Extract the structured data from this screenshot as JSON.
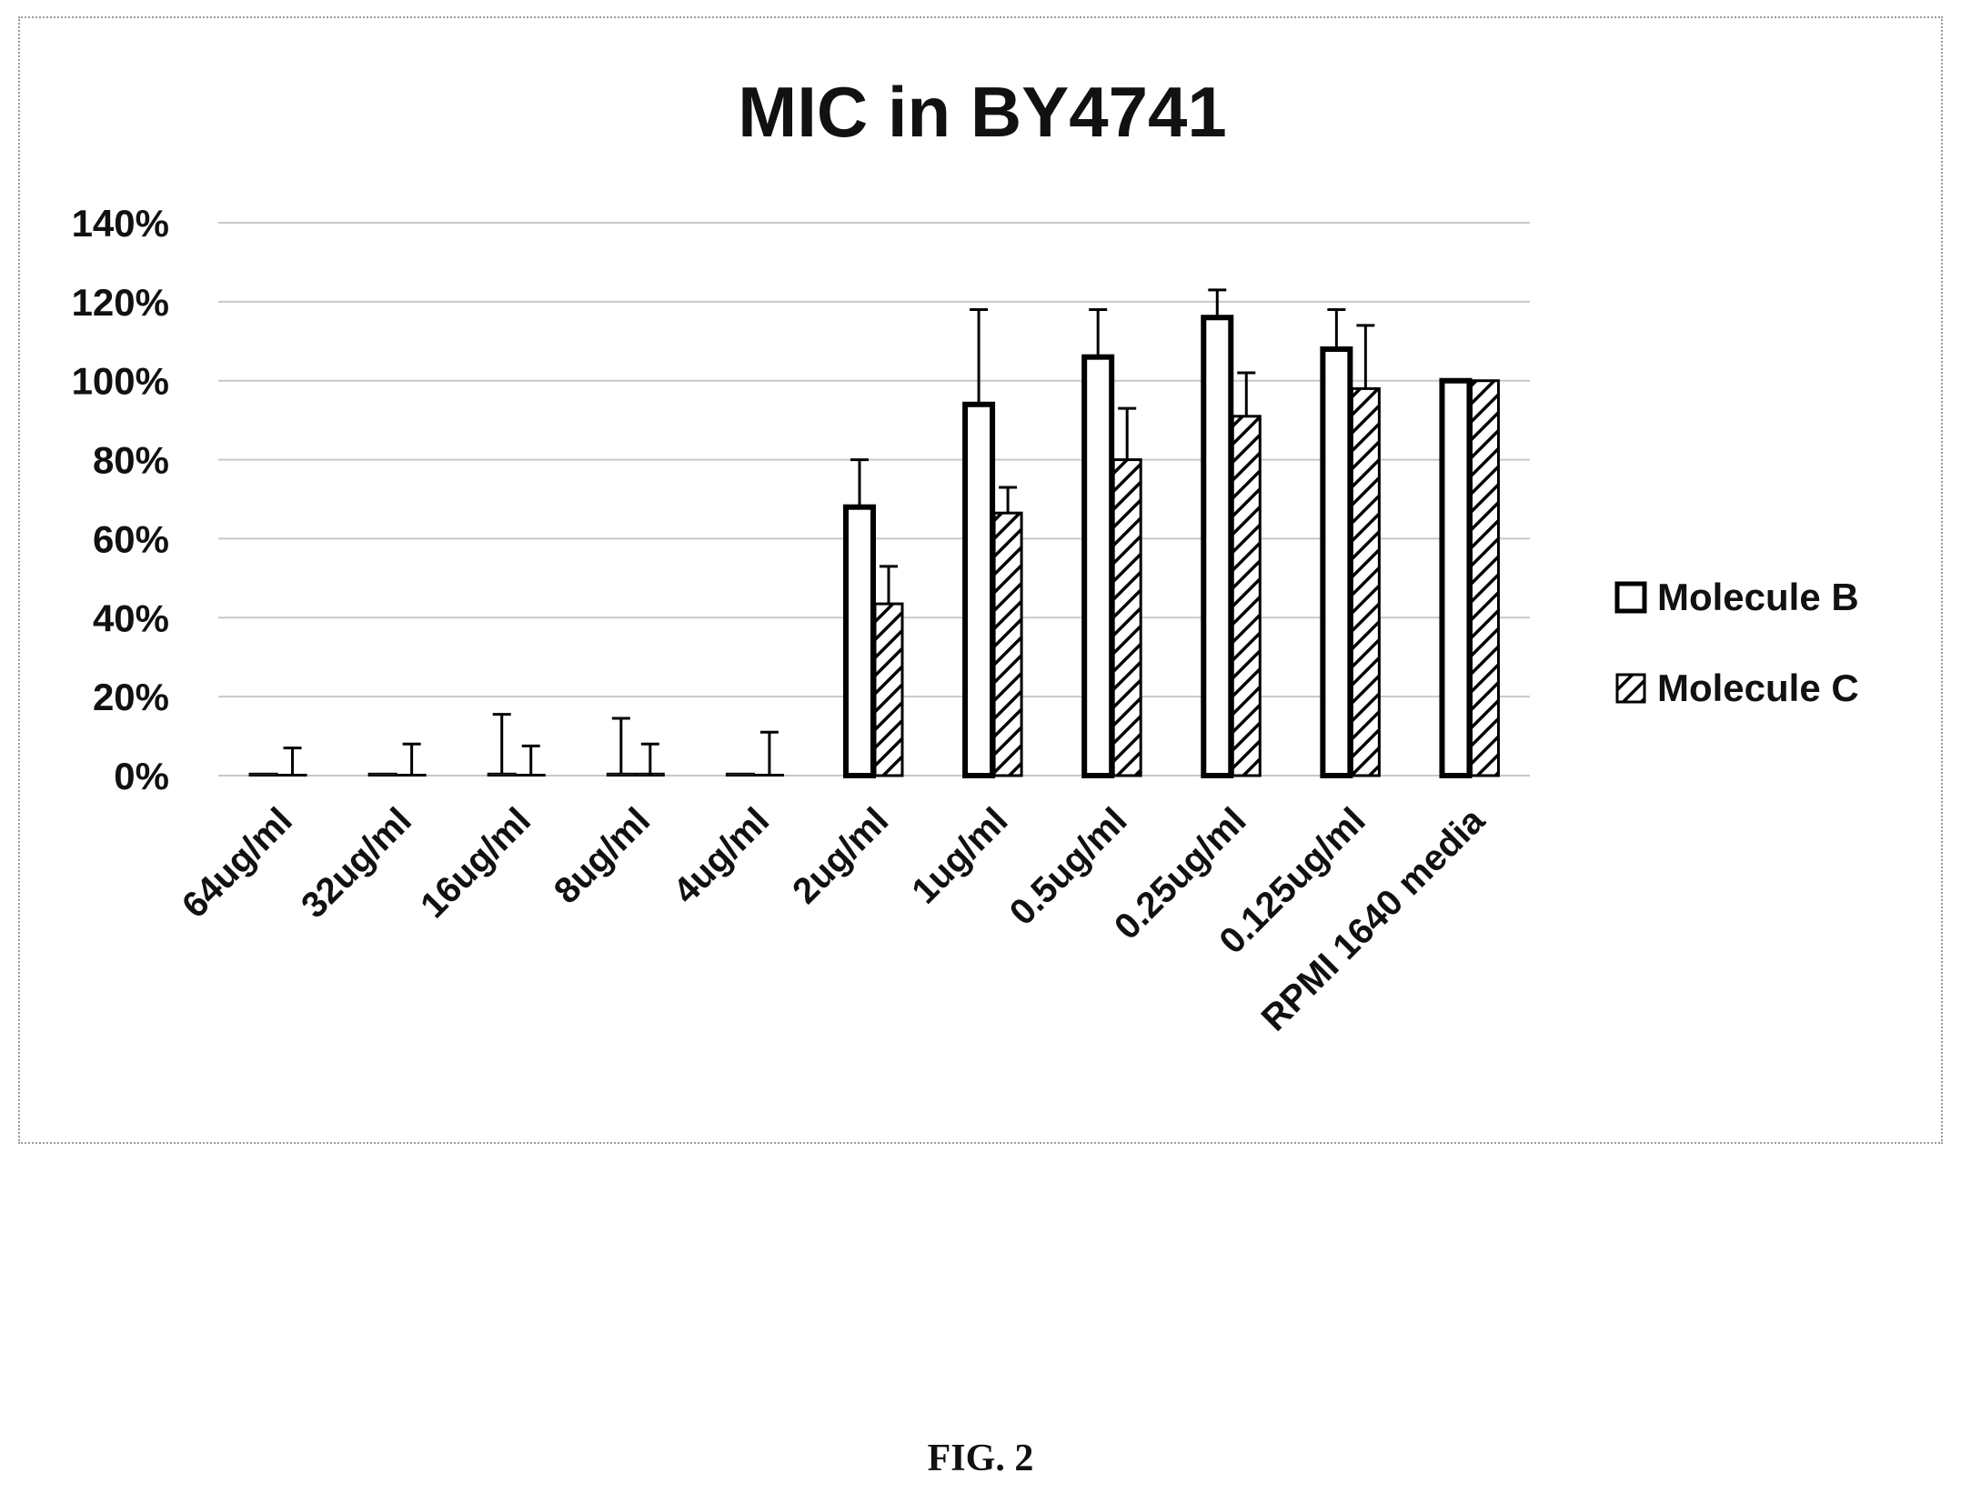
{
  "figure_caption": "FIG. 2",
  "chart_data": {
    "type": "bar",
    "title": "MIC in BY4741",
    "xlabel": "",
    "ylabel": "",
    "ylim": [
      0,
      140
    ],
    "yticks": [
      0,
      20,
      40,
      60,
      80,
      100,
      120,
      140
    ],
    "ytick_labels": [
      "0%",
      "20%",
      "40%",
      "60%",
      "80%",
      "100%",
      "120%",
      "140%"
    ],
    "grid": true,
    "legend_position": "right",
    "categories": [
      "64ug/ml",
      "32ug/ml",
      "16ug/ml",
      "8ug/ml",
      "4ug/ml",
      "2ug/ml",
      "1ug/ml",
      "0.5ug/ml",
      "0.25ug/ml",
      "0.125ug/ml",
      "RPMI 1640 media"
    ],
    "series": [
      {
        "name": "Molecule B",
        "pattern": "open",
        "values": [
          0.5,
          0.5,
          0.5,
          0.5,
          0.5,
          68,
          94,
          106,
          116,
          108,
          100
        ],
        "error": [
          0,
          0,
          15,
          14,
          0,
          12,
          24,
          12,
          7,
          10,
          0
        ]
      },
      {
        "name": "Molecule C",
        "pattern": "hatched",
        "values": [
          0,
          0,
          0,
          0.5,
          0,
          43.5,
          66.5,
          80,
          91,
          98,
          100
        ],
        "error": [
          7,
          8,
          7.5,
          7.5,
          11,
          9.5,
          6.5,
          13,
          11,
          16,
          0
        ]
      }
    ],
    "colors": {
      "stroke": "#000000",
      "fill": "#ffffff",
      "grid": "#c8c8c8"
    }
  }
}
